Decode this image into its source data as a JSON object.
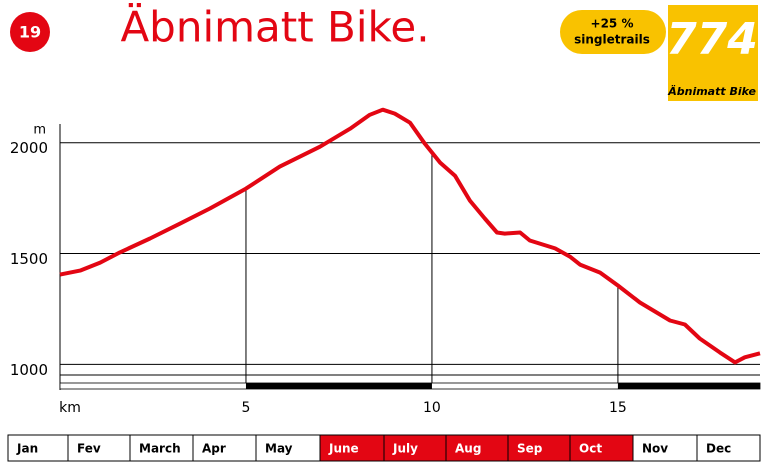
{
  "badge": "19",
  "pill": [
    "+25 %",
    "singletrails"
  ],
  "logo": {
    "number": "774",
    "name": "Äbnimatt Bike"
  },
  "chart_data": {
    "type": "line",
    "title": "Äbnimatt Bike.",
    "y_unit": "m",
    "x": [
      0,
      0.54,
      1.08,
      1.61,
      2.42,
      3.23,
      4.03,
      5,
      5.91,
      6.99,
      7.8,
      8.33,
      8.68,
      9.0,
      9.41,
      9.81,
      10.22,
      10.62,
      11.02,
      11.42,
      11.75,
      11.96,
      12.37,
      12.63,
      13.31,
      13.71,
      13.98,
      14.52,
      15,
      15.59,
      16.4,
      16.8,
      17.2,
      17.74,
      18.15,
      18.41,
      18.82
    ],
    "series": [
      {
        "name": "elevation",
        "color": "#e30613",
        "values": [
          1405,
          1423,
          1459,
          1505,
          1568,
          1635,
          1703,
          1793,
          1892,
          1982,
          2063,
          2126,
          2149,
          2131,
          2090,
          1995,
          1910,
          1851,
          1739,
          1658,
          1595,
          1590,
          1595,
          1559,
          1523,
          1486,
          1450,
          1414,
          1356,
          1279,
          1198,
          1180,
          1117,
          1054,
          1009,
          1032,
          1050
        ]
      }
    ],
    "xlim": [
      0,
      18.82
    ],
    "xticks": [
      {
        "value": 0,
        "label": "km"
      },
      5,
      10,
      15
    ],
    "ylim": [
      880,
      2170
    ],
    "yticks": [
      1000,
      1500,
      2000
    ],
    "grid": true
  },
  "months": [
    {
      "label": "Jan",
      "active": false
    },
    {
      "label": "Fev",
      "active": false
    },
    {
      "label": "March",
      "active": false
    },
    {
      "label": "Apr",
      "active": false
    },
    {
      "label": "May",
      "active": false
    },
    {
      "label": "June",
      "active": true
    },
    {
      "label": "July",
      "active": true
    },
    {
      "label": "Aug",
      "active": true
    },
    {
      "label": "Sep",
      "active": true
    },
    {
      "label": "Oct",
      "active": true
    },
    {
      "label": "Nov",
      "active": false
    },
    {
      "label": "Dec",
      "active": false
    }
  ]
}
